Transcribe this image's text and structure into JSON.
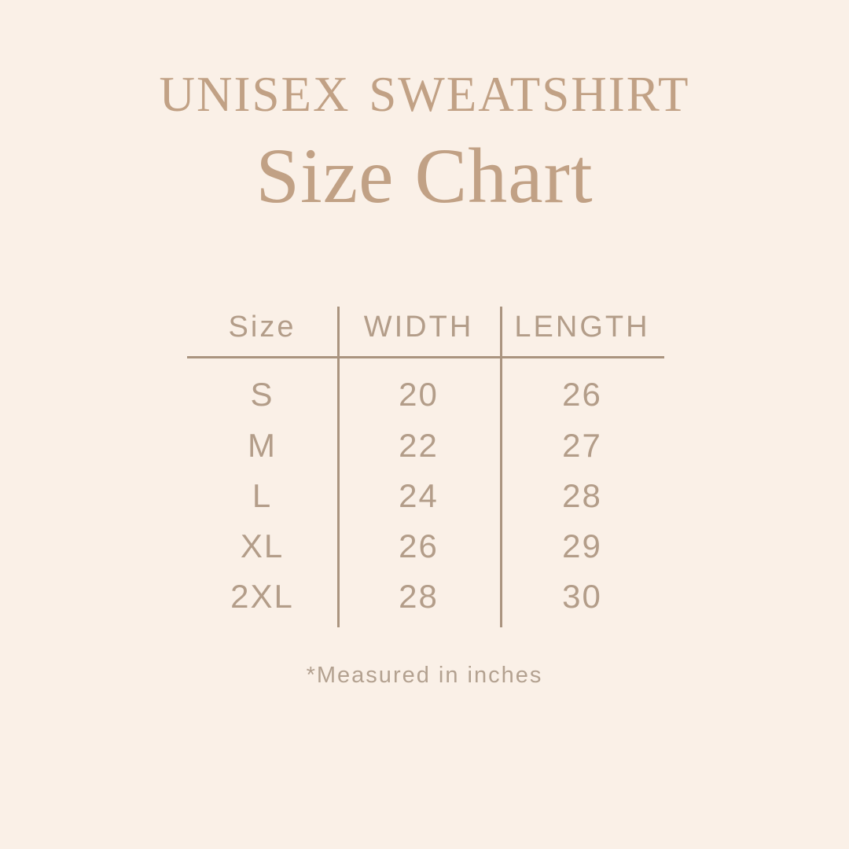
{
  "page": {
    "background_color": "#faf0e7",
    "accent_color": "#c1a185",
    "table_text_color": "#b39d89",
    "line_color": "#aa947f"
  },
  "header": {
    "title": "UNISEX SWEATSHIRT",
    "subtitle": "Size Chart"
  },
  "chart_data": {
    "type": "table",
    "columns": [
      "Size",
      "WIDTH",
      "LENGTH"
    ],
    "rows": [
      [
        "S",
        "20",
        "26"
      ],
      [
        "M",
        "22",
        "27"
      ],
      [
        "L",
        "24",
        "28"
      ],
      [
        "XL",
        "26",
        "29"
      ],
      [
        "2XL",
        "28",
        "30"
      ]
    ],
    "units_note": "*Measured in inches"
  },
  "footnote": "*Measured in inches"
}
